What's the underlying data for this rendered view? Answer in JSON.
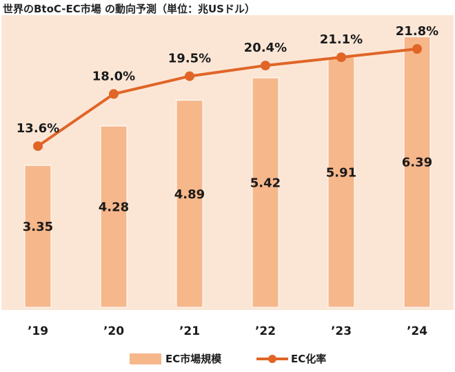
{
  "title": "世界のBtoC-EC市場 の動向予測（単位：兆USドル）",
  "colors": {
    "plot_background": "#fbe6d6",
    "bar": "#f6b78b",
    "line": "#e06527",
    "text": "#1a1a1a"
  },
  "chart_data": {
    "type": "bar",
    "categories": [
      "’19",
      "’20",
      "’21",
      "’22",
      "’23",
      "’24"
    ],
    "series": [
      {
        "name": "EC市場規模",
        "type": "bar",
        "values": [
          3.35,
          4.28,
          4.89,
          5.42,
          5.91,
          6.39
        ],
        "labels": [
          "3.35",
          "4.28",
          "4.89",
          "5.42",
          "5.91",
          "6.39"
        ]
      },
      {
        "name": "EC化率",
        "type": "line",
        "values": [
          13.6,
          18.0,
          19.5,
          20.4,
          21.1,
          21.8
        ],
        "labels": [
          "13.6%",
          "18.0%",
          "19.5%",
          "20.4%",
          "21.1%",
          "21.8%"
        ]
      }
    ],
    "ylim_bar": [
      0,
      7
    ],
    "ylim_line": [
      0,
      25
    ],
    "grid": false,
    "legend_position": "bottom"
  }
}
